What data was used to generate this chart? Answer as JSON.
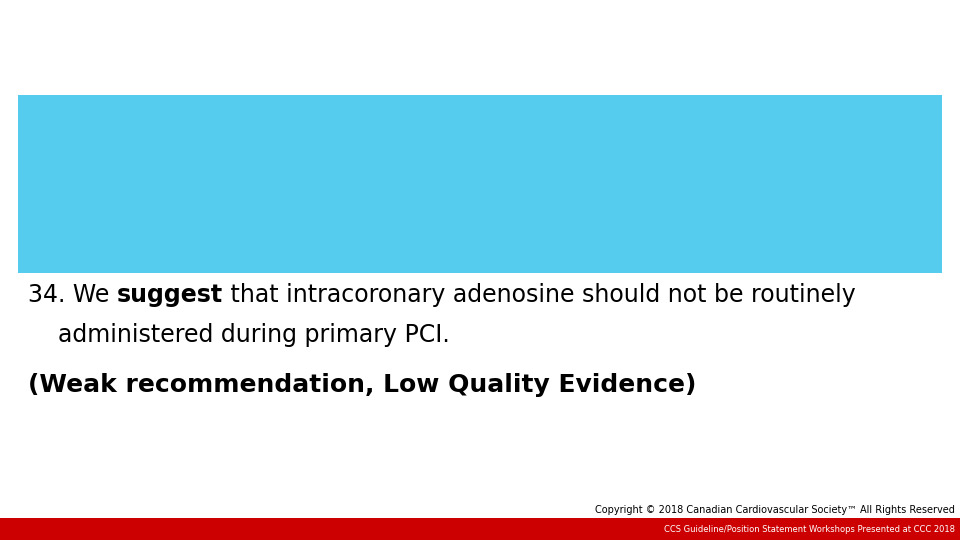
{
  "background_color": "#ffffff",
  "box_color": "#55CCEE",
  "text_color": "#000000",
  "line1_prefix": "34. We ",
  "line1_bold": "suggest",
  "line1_suffix": " that intracoronary adenosine should not be routinely",
  "line2": "    administered during primary PCI.",
  "line3": "(Weak recommendation, Low Quality Evidence)",
  "font_size_main": 17,
  "font_size_line3": 18,
  "footer_line1": "Copyright © 2018 Canadian Cardiovascular Society™ All Rights Reserved",
  "footer_line2": "CCS Guideline/Position Statement Workshops Presented at CCC 2018",
  "footer_bg_color": "#CC0000",
  "footer_text_color1": "#000000",
  "footer_text_color2": "#ffffff",
  "footer_font_size1": 7.0,
  "footer_font_size2": 6.0
}
